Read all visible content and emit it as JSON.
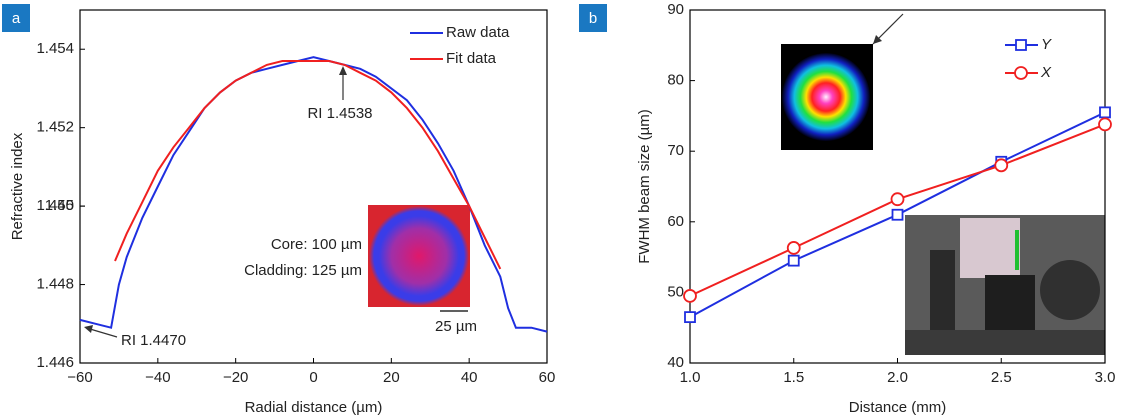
{
  "chart_data": [
    {
      "type": "line",
      "panel_label": "a",
      "xlabel": "Radial distance (µm)",
      "ylabel": "Refractive index",
      "xlim": [
        -60,
        60
      ],
      "xticks": [
        {
          "value": -60,
          "label": "−60"
        },
        {
          "value": -40,
          "label": "−40"
        },
        {
          "value": -20,
          "label": "−20"
        },
        0,
        20,
        40,
        60
      ],
      "ylim": [
        1.446,
        1.455
      ],
      "yticks": [
        1.446,
        1.448,
        1.45,
        {
          "value": 1.45,
          "label": "1.450"
        },
        1.452,
        1.454
      ],
      "legend": "upper right",
      "series": [
        {
          "name": "Raw data",
          "color": "#1f2fe0",
          "x": [
            -60,
            -56,
            -52,
            -50,
            -48,
            -44,
            -40,
            -36,
            -32,
            -28,
            -24,
            -20,
            -16,
            -12,
            -8,
            -4,
            0,
            4,
            8,
            12,
            16,
            20,
            24,
            28,
            32,
            36,
            40,
            44,
            48,
            50,
            52,
            56,
            60
          ],
          "values": [
            1.4471,
            1.447,
            1.4469,
            1.448,
            1.4487,
            1.4497,
            1.4505,
            1.4513,
            1.4519,
            1.4525,
            1.4529,
            1.4532,
            1.4534,
            1.4535,
            1.4536,
            1.4537,
            1.4538,
            1.4537,
            1.4536,
            1.4535,
            1.4533,
            1.453,
            1.4527,
            1.4522,
            1.4516,
            1.4509,
            1.45,
            1.449,
            1.4482,
            1.4474,
            1.4469,
            1.4469,
            1.4468
          ]
        },
        {
          "name": "Fit data",
          "color": "#f02020",
          "x": [
            -51,
            -48,
            -44,
            -40,
            -36,
            -32,
            -28,
            -24,
            -20,
            -16,
            -12,
            -8,
            -4,
            0,
            4,
            8,
            12,
            16,
            20,
            24,
            28,
            32,
            36,
            40,
            44,
            48
          ],
          "values": [
            1.4486,
            1.4493,
            1.4501,
            1.4509,
            1.4515,
            1.452,
            1.4525,
            1.4529,
            1.4532,
            1.4534,
            1.4536,
            1.4537,
            1.4537,
            1.4537,
            1.4537,
            1.4536,
            1.4534,
            1.4532,
            1.4529,
            1.4525,
            1.452,
            1.4514,
            1.4507,
            1.45,
            1.4492,
            1.4484
          ]
        }
      ],
      "annotations": [
        "RI 1.4538",
        "RI 1.4470",
        "Core: 100 µm",
        "Cladding: 125 µm",
        "25 µm"
      ]
    },
    {
      "type": "line",
      "panel_label": "b",
      "xlabel": "Distance (mm)",
      "ylabel": "FWHM beam size (µm)",
      "xlim": [
        1,
        3
      ],
      "xticks": [
        {
          "value": 1,
          "label": "1.0"
        },
        1.5,
        {
          "value": 2,
          "label": "2.0"
        },
        2.5,
        {
          "value": 3,
          "label": "3.0"
        }
      ],
      "ylim": [
        40,
        90
      ],
      "yticks": [
        40,
        50,
        60,
        70,
        80,
        90
      ],
      "legend": "upper right",
      "series": [
        {
          "name": "Y",
          "color": "#1f2fe0",
          "marker": "square",
          "x": [
            1,
            1.5,
            2,
            2.5,
            3
          ],
          "values": [
            46.5,
            54.5,
            61,
            68.5,
            75.5
          ]
        },
        {
          "name": "X",
          "color": "#f02020",
          "marker": "circle",
          "x": [
            1,
            1.5,
            2,
            2.5,
            3
          ],
          "values": [
            49.5,
            56.3,
            63.2,
            68,
            73.8
          ]
        }
      ]
    }
  ]
}
